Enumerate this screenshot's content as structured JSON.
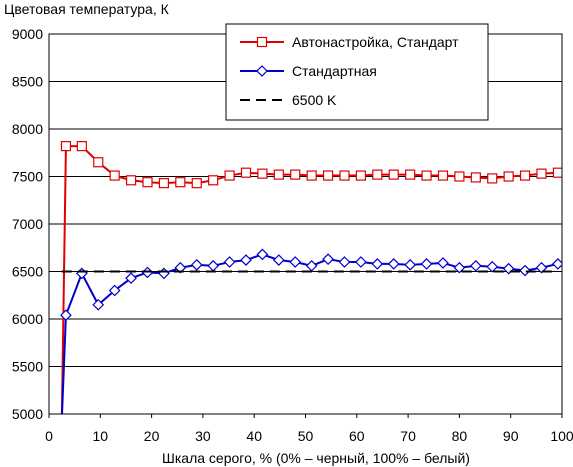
{
  "chart_data": {
    "type": "line",
    "title": "Цветовая температура, К",
    "xlabel": "Шкала серого, % (0% – черный, 100% – белый)",
    "ylabel": "",
    "xlim": [
      0,
      100
    ],
    "ylim": [
      5000,
      9000
    ],
    "x_ticks": [
      "0",
      "10",
      "20",
      "30",
      "40",
      "50",
      "60",
      "70",
      "80",
      "90",
      "100"
    ],
    "y_ticks": [
      "5000",
      "5500",
      "6000",
      "6500",
      "7000",
      "7500",
      "8000",
      "8500",
      "9000"
    ],
    "grid": "horizontal",
    "legend_position": "top-right",
    "series": [
      {
        "name": "Автонастройка, Стандарт",
        "color": "#e00000",
        "marker": "square",
        "x": [
          2.5,
          3.3,
          6.4,
          9.6,
          12.8,
          16.0,
          19.2,
          22.4,
          25.6,
          28.8,
          32.0,
          35.2,
          38.4,
          41.6,
          44.8,
          48.0,
          51.2,
          54.4,
          57.6,
          60.8,
          64.0,
          67.2,
          70.4,
          73.6,
          76.8,
          80.0,
          83.2,
          86.4,
          89.6,
          92.8,
          96.0,
          99.2
        ],
        "values": [
          4950,
          7820,
          7820,
          7650,
          7510,
          7460,
          7440,
          7430,
          7440,
          7430,
          7460,
          7510,
          7540,
          7530,
          7520,
          7520,
          7510,
          7510,
          7510,
          7510,
          7520,
          7520,
          7520,
          7510,
          7510,
          7500,
          7490,
          7480,
          7500,
          7510,
          7530,
          7540
        ]
      },
      {
        "name": "Стандартная",
        "color": "#0000cc",
        "marker": "diamond",
        "x": [
          2.5,
          3.3,
          6.4,
          9.6,
          12.8,
          16.0,
          19.2,
          22.4,
          25.6,
          28.8,
          32.0,
          35.2,
          38.4,
          41.6,
          44.8,
          48.0,
          51.2,
          54.4,
          57.6,
          60.8,
          64.0,
          67.2,
          70.4,
          73.6,
          76.8,
          80.0,
          83.2,
          86.4,
          89.6,
          92.8,
          96.0,
          99.2
        ],
        "values": [
          4950,
          6040,
          6480,
          6150,
          6300,
          6430,
          6490,
          6480,
          6540,
          6570,
          6560,
          6600,
          6620,
          6680,
          6620,
          6600,
          6560,
          6630,
          6600,
          6600,
          6580,
          6580,
          6570,
          6580,
          6590,
          6540,
          6560,
          6550,
          6530,
          6510,
          6540,
          6580
        ]
      },
      {
        "name": "6500 K",
        "color": "#000000",
        "marker": "none",
        "dashed": true,
        "x": [
          2.5,
          99.2
        ],
        "values": [
          6500,
          6500
        ]
      }
    ]
  }
}
